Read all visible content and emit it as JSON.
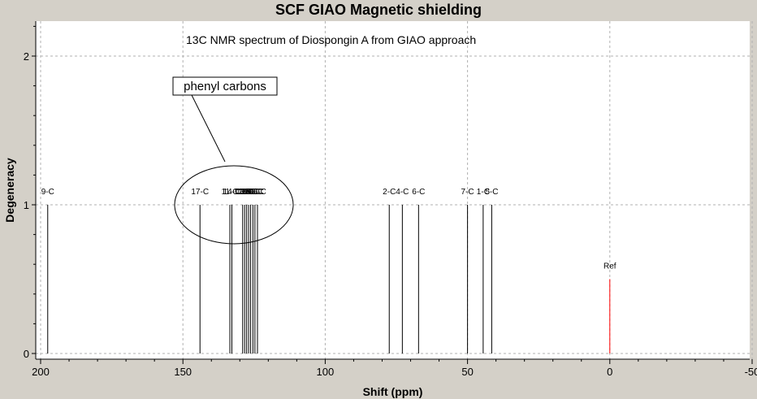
{
  "window": {
    "title": "SCF GIAO Magnetic shielding"
  },
  "colors": {
    "background": "#d4d0c8",
    "plot_area": "#ffffff",
    "peak": "#000000",
    "reference_peak": "#ff0000",
    "grid": "#b0b0b0"
  },
  "chart_data": {
    "type": "bar",
    "title": "SCF GIAO Magnetic shielding",
    "xlabel": "Shift (ppm)",
    "ylabel": "Degeneracy",
    "xlim": [
      200,
      -50
    ],
    "ylim": [
      0,
      2.2
    ],
    "x_reversed": true,
    "grid": true,
    "x_ticks": [
      200,
      150,
      100,
      50,
      0,
      -50
    ],
    "y_ticks": [
      0,
      1,
      2
    ],
    "peaks": [
      {
        "label": "9-C",
        "shift": 197.5,
        "degeneracy": 1
      },
      {
        "label": "17-C",
        "shift": 144.0,
        "degeneracy": 1
      },
      {
        "label": "11-C",
        "shift": 133.5,
        "degeneracy": 1
      },
      {
        "label": "14-C",
        "shift": 132.8,
        "degeneracy": 1
      },
      {
        "label": "12-C",
        "shift": 129.0,
        "degeneracy": 1
      },
      {
        "label": "13-C",
        "shift": 128.3,
        "degeneracy": 1
      },
      {
        "label": "18-C",
        "shift": 127.6,
        "degeneracy": 1
      },
      {
        "label": "19-C",
        "shift": 126.9,
        "degeneracy": 1
      },
      {
        "label": "15-C",
        "shift": 126.2,
        "degeneracy": 1
      },
      {
        "label": "20-C",
        "shift": 125.4,
        "degeneracy": 1
      },
      {
        "label": "21-C",
        "shift": 124.7,
        "degeneracy": 1
      },
      {
        "label": "16-C",
        "shift": 123.8,
        "degeneracy": 1
      },
      {
        "label": "2-C",
        "shift": 77.5,
        "degeneracy": 1
      },
      {
        "label": "4-C",
        "shift": 72.9,
        "degeneracy": 1
      },
      {
        "label": "6-C",
        "shift": 67.2,
        "degeneracy": 1
      },
      {
        "label": "7-C",
        "shift": 50.0,
        "degeneracy": 1
      },
      {
        "label": "1-C",
        "shift": 44.5,
        "degeneracy": 1
      },
      {
        "label": "5-C",
        "shift": 41.5,
        "degeneracy": 1
      },
      {
        "label": "Ref",
        "shift": 0.0,
        "degeneracy": 0.5,
        "reference": true
      }
    ],
    "annotations": [
      {
        "text": "13C NMR spectrum of Diospongin A from GIAO approach"
      },
      {
        "text": "phenyl carbons"
      }
    ]
  }
}
